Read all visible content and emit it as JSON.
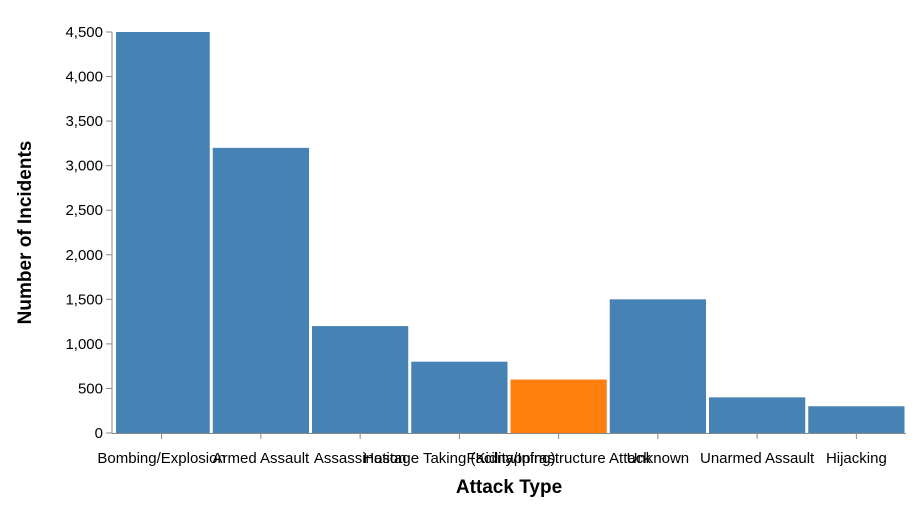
{
  "chart_data": {
    "type": "bar",
    "categories": [
      "Bombing/Explosion",
      "Armed Assault",
      "Assassination",
      "Hostage Taking (Kidnapping)",
      "Facility/Infrastructure Attack",
      "Unknown",
      "Unarmed Assault",
      "Hijacking"
    ],
    "values": [
      4500,
      3200,
      1200,
      800,
      600,
      1500,
      400,
      300
    ],
    "bar_colors": [
      "#4682b4",
      "#4682b4",
      "#4682b4",
      "#4682b4",
      "#ff7f0e",
      "#4682b4",
      "#4682b4",
      "#4682b4"
    ],
    "title": "",
    "xlabel": "Attack Type",
    "ylabel": "Number of Incidents",
    "ylim": [
      0,
      4500
    ],
    "yticks": [
      0,
      500,
      1000,
      1500,
      2000,
      2500,
      3000,
      3500,
      4000,
      4500
    ],
    "ytick_labels": [
      "0",
      "500",
      "1,000",
      "1,500",
      "2,000",
      "2,500",
      "3,000",
      "3,500",
      "4,000",
      "4,500"
    ],
    "grid": false,
    "legend": "none"
  }
}
